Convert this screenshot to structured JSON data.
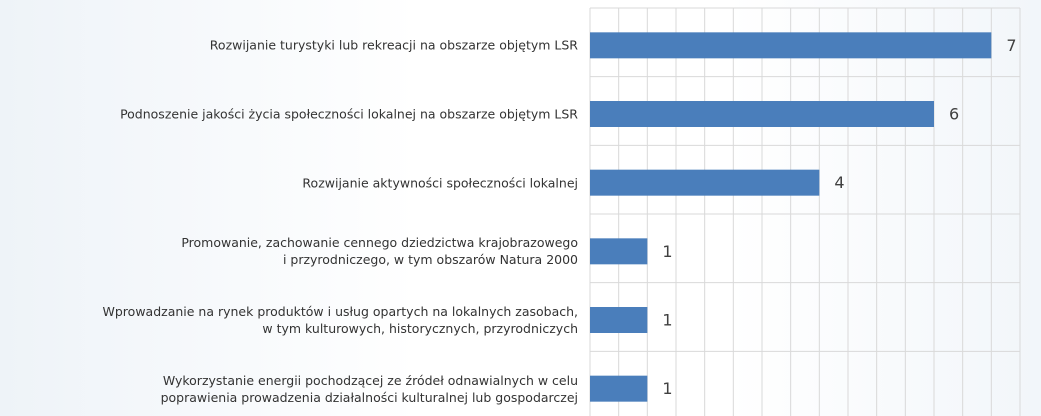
{
  "chart_data": {
    "type": "bar",
    "orientation": "horizontal",
    "categories": [
      "Rozwijanie turystyki lub rekreacji na obszarze objętym LSR",
      "Podnoszenie jakości życia społeczności lokalnej na obszarze objętym LSR",
      "Rozwijanie aktywności społeczności lokalnej",
      "Promowanie, zachowanie cennego dziedzictwa krajobrazowego\ni przyrodniczego, w tym obszarów Natura 2000",
      "Wprowadzanie na rynek produktów i usług opartych na lokalnych zasobach,\nw tym kulturowych, historycznych, przyrodniczych",
      "Wykorzystanie energii pochodzącej ze źródeł odnawialnych w celu\npoprawienia prowadzenia działalności kulturalnej lub gospodarczej"
    ],
    "values": [
      7,
      6,
      4,
      1,
      1,
      1
    ],
    "color": "#4a7ebb",
    "xlim": [
      0,
      7.5
    ],
    "xticks": [
      0,
      0.5,
      1,
      1.5,
      2,
      2.5,
      3,
      3.5,
      4,
      4.5,
      5,
      5.5,
      6,
      6.5,
      7,
      7.5
    ],
    "grid": true
  }
}
